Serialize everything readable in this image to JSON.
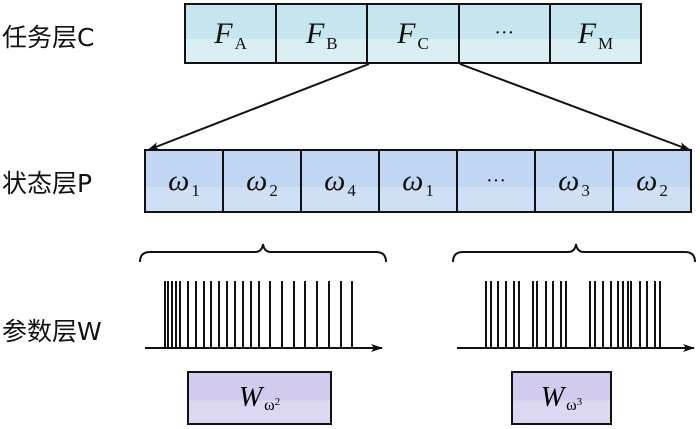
{
  "layers": {
    "task": {
      "label": "任务层C",
      "cells": [
        {
          "main": "F",
          "sub": "A"
        },
        {
          "main": "F",
          "sub": "B"
        },
        {
          "main": "F",
          "sub": "C"
        },
        {
          "main": "···",
          "sub": ""
        },
        {
          "main": "F",
          "sub": "M"
        }
      ]
    },
    "state": {
      "label": "状态层P",
      "cells": [
        {
          "main": "ω",
          "sub": "1"
        },
        {
          "main": "ω",
          "sub": "2"
        },
        {
          "main": "ω",
          "sub": "4"
        },
        {
          "main": "ω",
          "sub": "1"
        },
        {
          "main": "···",
          "sub": ""
        },
        {
          "main": "ω",
          "sub": "3"
        },
        {
          "main": "ω",
          "sub": "2"
        }
      ]
    },
    "param": {
      "label": "参数层W",
      "boxes": [
        {
          "main": "W",
          "sub": "ω",
          "sub2": "2"
        },
        {
          "main": "W",
          "sub": "ω",
          "sub2": "3"
        }
      ]
    }
  },
  "colors": {
    "task": "#c5e6ee",
    "state": "#c1d6f3",
    "param": "#d2cbed"
  }
}
